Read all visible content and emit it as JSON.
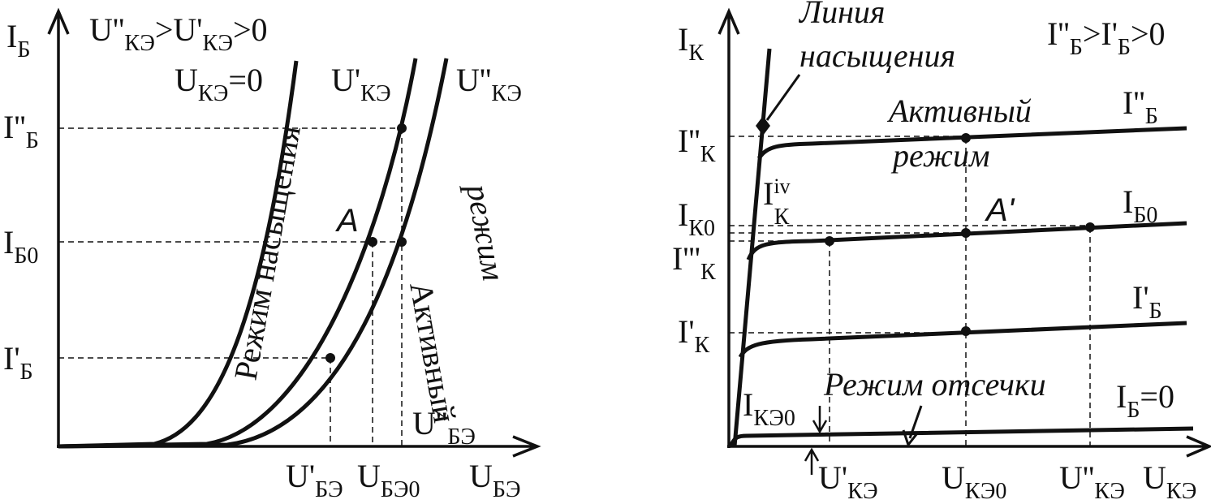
{
  "left": {
    "labels": [
      {
        "parts": [
          {
            "text": "I",
            "sub": "Б"
          }
        ]
      },
      {
        "parts": [
          {
            "text": "U''",
            "sub": "КЭ"
          },
          {
            "text": ">U'",
            "sub": "КЭ"
          },
          {
            "text": ">0"
          }
        ]
      },
      {
        "parts": [
          {
            "text": "U",
            "sub": "КЭ"
          },
          {
            "text": "=0"
          }
        ]
      },
      {
        "parts": [
          {
            "text": "U'",
            "sub": "КЭ"
          }
        ]
      },
      {
        "parts": [
          {
            "text": "U''",
            "sub": "КЭ"
          }
        ]
      },
      {
        "parts": [
          {
            "text": "I''",
            "sub": "Б"
          }
        ]
      },
      {
        "parts": [
          {
            "text": "I",
            "sub": "Б0"
          }
        ]
      },
      {
        "parts": [
          {
            "text": "I'",
            "sub": "Б"
          }
        ]
      },
      {
        "parts": [
          {
            "text": "A"
          }
        ]
      },
      {
        "parts": [
          {
            "text": "Режим насыщения"
          }
        ]
      },
      {
        "parts": [
          {
            "text": "Активный"
          }
        ]
      },
      {
        "parts": [
          {
            "text": "режим"
          }
        ]
      },
      {
        "parts": [
          {
            "text": "U''",
            "sub": "БЭ"
          }
        ]
      },
      {
        "parts": [
          {
            "text": "U'",
            "sub": "БЭ"
          }
        ]
      },
      {
        "parts": [
          {
            "text": "U",
            "sub": "БЭ0"
          }
        ]
      },
      {
        "parts": [
          {
            "text": "U",
            "sub": "БЭ"
          }
        ]
      }
    ]
  },
  "right": {
    "labels": [
      {
        "parts": [
          {
            "text": "I",
            "sub": "К"
          }
        ]
      },
      {
        "parts": [
          {
            "text": "Линия"
          }
        ]
      },
      {
        "parts": [
          {
            "text": "насыщения"
          }
        ]
      },
      {
        "parts": [
          {
            "text": "I''",
            "sub": "Б"
          },
          {
            "text": ">I'",
            "sub": "Б"
          },
          {
            "text": ">0"
          }
        ]
      },
      {
        "parts": [
          {
            "text": "Активный"
          }
        ]
      },
      {
        "parts": [
          {
            "text": "режим"
          }
        ]
      },
      {
        "parts": [
          {
            "text": "I''",
            "sub": "Б"
          }
        ]
      },
      {
        "parts": [
          {
            "text": "I''",
            "sub": "К"
          }
        ]
      },
      {
        "parts": [
          {
            "text": "I",
            "sup": "iv",
            "sub": "К"
          }
        ]
      },
      {
        "parts": [
          {
            "text": "I",
            "sub": "К0"
          }
        ]
      },
      {
        "parts": [
          {
            "text": "I'''",
            "sub": "К"
          }
        ]
      },
      {
        "parts": [
          {
            "text": "A'"
          }
        ]
      },
      {
        "parts": [
          {
            "text": "I",
            "sub": "Б0"
          }
        ]
      },
      {
        "parts": [
          {
            "text": "I'",
            "sub": "Б"
          }
        ]
      },
      {
        "parts": [
          {
            "text": "I'",
            "sub": "К"
          }
        ]
      },
      {
        "parts": [
          {
            "text": "I",
            "sub": "КЭ0"
          }
        ]
      },
      {
        "parts": [
          {
            "text": "Режим отсечки"
          }
        ]
      },
      {
        "parts": [
          {
            "text": "I",
            "sub": "Б"
          },
          {
            "text": "=0"
          }
        ]
      },
      {
        "parts": [
          {
            "text": "U'",
            "sub": "КЭ"
          }
        ]
      },
      {
        "parts": [
          {
            "text": "U",
            "sub": "КЭ0"
          }
        ]
      },
      {
        "parts": [
          {
            "text": "U''",
            "sub": "КЭ"
          }
        ]
      },
      {
        "parts": [
          {
            "text": "U",
            "sub": "КЭ"
          }
        ]
      }
    ]
  }
}
